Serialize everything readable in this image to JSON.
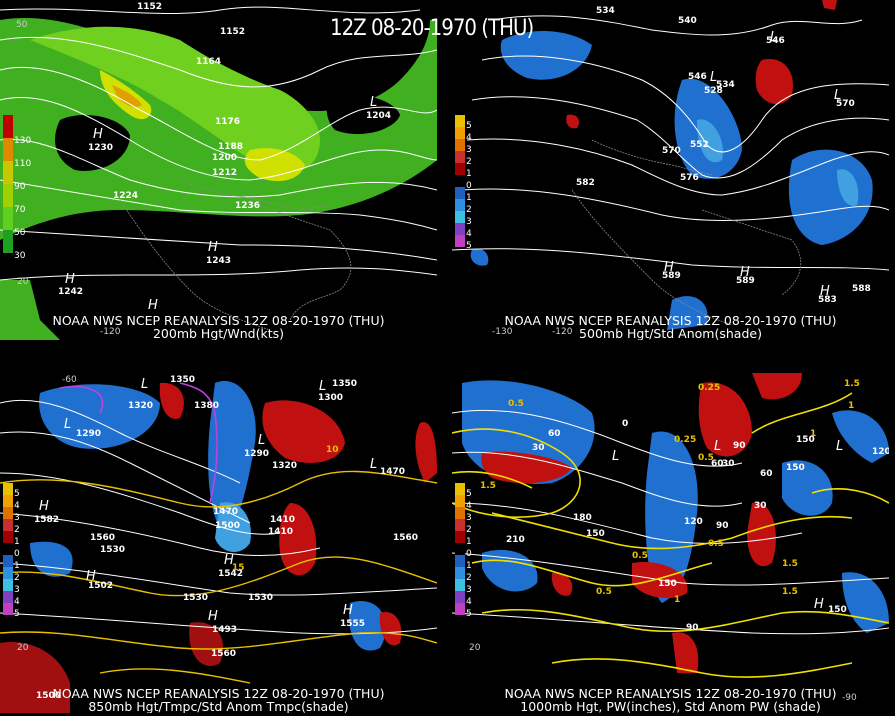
{
  "main_title": "12Z 08-20-1970 (THU)",
  "panels": {
    "top_left": {
      "line1": "NOAA NWS NCEP REANALYSIS 12Z 08-20-1970 (THU)",
      "line2": "200mb Hgt/Wnd(kts)",
      "legend_labels": [
        "130",
        "110",
        "90",
        "70",
        "50",
        "30"
      ],
      "legend_colors": [
        "#c00000",
        "#e08800",
        "#c8c800",
        "#a0d000",
        "#60d020",
        "#20a020"
      ],
      "contour_labels": [
        "1152",
        "1152",
        "1164",
        "1176",
        "1188",
        "1200",
        "1212",
        "1224",
        "1236",
        "1230",
        "1243",
        "1242",
        "1204"
      ],
      "axis_labels": [
        "20",
        "-120",
        "50"
      ]
    },
    "top_right": {
      "line1": "NOAA NWS NCEP REANALYSIS 12Z 08-20-1970 (THU)",
      "line2": "500mb Hgt/Std Anom(shade)",
      "legend_labels": [
        "5",
        "4",
        "3",
        "2",
        "1",
        "0",
        "1",
        "2",
        "3",
        "4",
        "5"
      ],
      "contour_labels": [
        "534",
        "540",
        "546",
        "546",
        "534",
        "528",
        "552",
        "570",
        "582",
        "576",
        "570",
        "589",
        "589",
        "583",
        "588"
      ],
      "axis_labels": [
        "-130",
        "-120"
      ]
    },
    "bottom_left": {
      "line1": "NOAA NWS NCEP REANALYSIS 12Z 08-20-1970 (THU)",
      "line2": "850mb Hgt/Tmpc/Std Anom Tmpc(shade)",
      "legend_labels": [
        "5",
        "4",
        "3",
        "2",
        "1",
        "0",
        "1",
        "2",
        "3",
        "4",
        "5"
      ],
      "contour_labels": [
        "1350",
        "1380",
        "1320",
        "1290",
        "1290",
        "1380",
        "1350",
        "1300",
        "1320",
        "1470",
        "1470",
        "1500",
        "1470",
        "1410",
        "1410",
        "1560",
        "1530",
        "1560",
        "1502",
        "1542",
        "1530",
        "1530",
        "1493",
        "1560",
        "1555",
        "1582",
        "15",
        "10",
        "1500"
      ],
      "axis_labels": [
        "20",
        "-60"
      ]
    },
    "bottom_right": {
      "line1": "NOAA NWS NCEP REANALYSIS 12Z 08-20-1970 (THU)",
      "line2": "1000mb Hgt, PW(inches), Std Anom PW (shade)",
      "legend_labels": [
        "5",
        "4",
        "3",
        "2",
        "1",
        "0",
        "1",
        "2",
        "3",
        "4",
        "5"
      ],
      "contour_labels": [
        "0.25",
        "1.5",
        "0.5",
        "1",
        "60",
        "30",
        "1.5",
        "0.25",
        "0.5",
        "90",
        "0",
        "30",
        "60",
        "150",
        "120",
        "60",
        "30",
        "150",
        "210",
        "180",
        "150",
        "120",
        "90",
        "0.5",
        "0.5",
        "150",
        "1",
        "90",
        "0.5",
        "1.5",
        "150",
        "1",
        "1.5",
        "20",
        "90"
      ],
      "axis_labels": [
        "20",
        "-90"
      ]
    }
  },
  "colors": {
    "anom_pos": [
      "#e8c000",
      "#f0a000",
      "#e07000",
      "#c83030",
      "#a00000"
    ],
    "anom_neg": [
      "#2060c0",
      "#3090e0",
      "#40c0e0",
      "#8040c0",
      "#c040c0"
    ],
    "wind": "#40c020",
    "contour_white": "#ffffff",
    "contour_yellow": "#e8d000",
    "contour_magenta": "#c040e0"
  }
}
